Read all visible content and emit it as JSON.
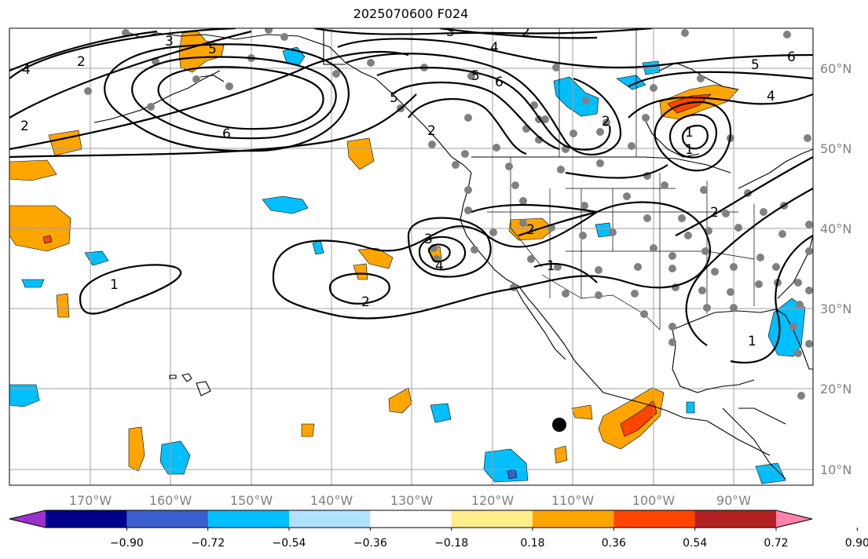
{
  "title": "2025070600 F024",
  "longitude_labels": [
    "170°W",
    "160°W",
    "150°W",
    "140°W",
    "130°W",
    "120°W",
    "110°W",
    "100°W",
    "90°W"
  ],
  "latitude_labels": [
    "60°N",
    "50°N",
    "40°N",
    "30°N",
    "20°N",
    "10°N"
  ],
  "colorbar": {
    "tick_labels": [
      "−0.90",
      "−0.72",
      "−0.54",
      "−0.36",
      "−0.18",
      "0.18",
      "0.36",
      "0.54",
      "0.72",
      "0.90"
    ],
    "colors": [
      "#9932cc",
      "#00008b",
      "#3a5fcd",
      "#00bfff",
      "#b0e2ff",
      "#ffffff",
      "#ffec8b",
      "#ffa500",
      "#ff4500",
      "#b22222",
      "#ff82ab"
    ]
  },
  "contour_labels": [
    "3",
    "5",
    "2",
    "4",
    "6",
    "2",
    "3",
    "2",
    "4",
    "6",
    "5",
    "4",
    "5",
    "2",
    "6",
    "2",
    "1",
    "3",
    "4",
    "2",
    "1",
    "2",
    "1",
    "1",
    "2",
    "5",
    "1"
  ],
  "colors": {
    "land_outline": "#000000",
    "grid": "#a0a0a0",
    "station_dot": "#808080",
    "contour": "#000000",
    "text_gray": "#808080"
  }
}
